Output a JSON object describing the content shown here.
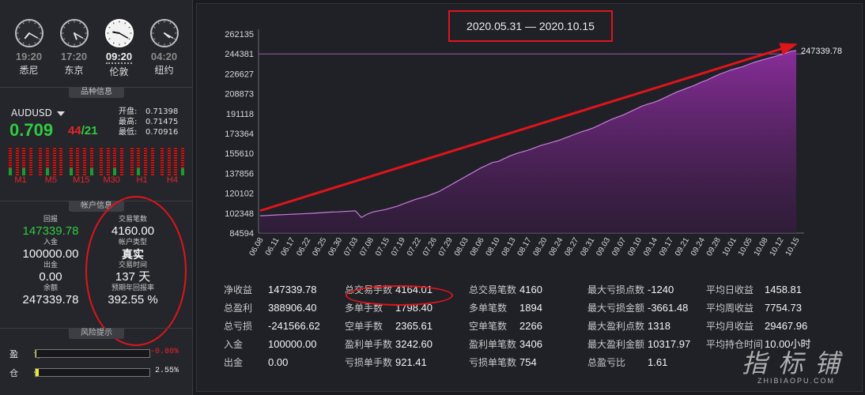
{
  "clocks": [
    {
      "time": "19:20",
      "city": "悉尼",
      "hour": 19,
      "minute": 20,
      "active": false
    },
    {
      "time": "17:20",
      "city": "东京",
      "hour": 17,
      "minute": 20,
      "active": false
    },
    {
      "time": "09:20",
      "city": "伦敦",
      "hour": 9,
      "minute": 20,
      "active": true
    },
    {
      "time": "04:20",
      "city": "纽约",
      "hour": 4,
      "minute": 20,
      "active": false
    }
  ],
  "sections": {
    "instrument": "品种信息",
    "account": "帐户信息",
    "risk": "风险提示"
  },
  "instrument": {
    "symbol": "AUDUSD",
    "price_main": "0.709",
    "price_a": "44",
    "price_sep": "/",
    "price_b": "21",
    "open_label": "开盘:",
    "open": "0.71398",
    "high_label": "最高:",
    "high": "0.71475",
    "low_label": "最低:",
    "low": "0.70916",
    "timeframes": [
      "M1",
      "M5",
      "M15",
      "M30",
      "H1",
      "H4"
    ]
  },
  "account": {
    "return_label": "回报",
    "return": "147339.78",
    "deposit_label": "入金",
    "deposit": "100000.00",
    "withdraw_label": "出金",
    "withdraw": "0.00",
    "balance_label": "余额",
    "balance": "247339.78",
    "lots_label": "交易笔数",
    "lots": "4160.00",
    "type_label": "帐户类型",
    "type": "真实",
    "time_label": "交易时间",
    "time": "137 天",
    "annual_label": "预期年回报率",
    "annual": "392.55 %"
  },
  "risk": {
    "profit_label": "盈 亏",
    "profit_pct": "-0.80%",
    "profit_value": 0.8,
    "position_label": "仓 位",
    "position_pct": "2.55%",
    "position_value": 2.55
  },
  "chart_data": {
    "type": "area",
    "title": "2020.05.31 — 2020.10.15",
    "last_value_label": "247339.78",
    "y_ticks": [
      "262135",
      "244381",
      "226627",
      "208873",
      "191118",
      "173364",
      "155610",
      "137856",
      "120102",
      "102348",
      "84594"
    ],
    "ylim": [
      84594,
      262135
    ],
    "reference_line": 244381,
    "x_ticks": [
      "06.08",
      "06.11",
      "06.17",
      "06.22",
      "06.25",
      "06.30",
      "07.03",
      "07.08",
      "07.15",
      "07.19",
      "07.22",
      "07.26",
      "07.29",
      "08.03",
      "08.06",
      "08.10",
      "08.13",
      "08.17",
      "08.20",
      "08.24",
      "08.27",
      "08.31",
      "09.03",
      "09.07",
      "09.10",
      "09.14",
      "09.17",
      "09.21",
      "09.24",
      "09.28",
      "10.01",
      "10.05",
      "10.08",
      "10.12",
      "10.15"
    ],
    "series": [
      {
        "values": [
          100000,
          100200,
          100500,
          100800,
          101000,
          101300,
          101500,
          101700,
          102000,
          102300,
          102600,
          103000,
          103300,
          103500,
          103800,
          104100,
          104400,
          98500,
          101500,
          103500,
          104500,
          105500,
          107000,
          108500,
          110500,
          112500,
          114500,
          116000,
          117500,
          119500,
          121500,
          124500,
          127500,
          130500,
          133500,
          136500,
          139500,
          142500,
          145000,
          147500,
          148500,
          151000,
          153500,
          155500,
          157000,
          158500,
          160500,
          162500,
          164000,
          165500,
          167000,
          169000,
          171000,
          173000,
          175000,
          176500,
          178500,
          181000,
          183500,
          186000,
          188000,
          190000,
          192500,
          195000,
          197500,
          199500,
          201000,
          203000,
          205500,
          208000,
          210500,
          212500,
          214500,
          216500,
          219000,
          221000,
          223500,
          226000,
          228000,
          230000,
          231500,
          233000,
          235000,
          237000,
          238500,
          240000,
          241500,
          243000,
          244500,
          246500,
          247339.78
        ]
      }
    ]
  },
  "stats": [
    [
      {
        "k": "净收益",
        "v": "147339.78"
      },
      {
        "k": "总盈利",
        "v": "388906.40"
      },
      {
        "k": "总亏损",
        "v": "-241566.62"
      },
      {
        "k": "入金",
        "v": "100000.00"
      },
      {
        "k": "出金",
        "v": "0.00"
      }
    ],
    [
      {
        "k": "总交易手数",
        "v": "4164.01"
      },
      {
        "k": "多单手数",
        "v": "1798.40"
      },
      {
        "k": "空单手数",
        "v": "2365.61"
      },
      {
        "k": "盈利单手数",
        "v": "3242.60"
      },
      {
        "k": "亏损单手数",
        "v": "921.41"
      }
    ],
    [
      {
        "k": "总交易笔数",
        "v": "4160"
      },
      {
        "k": "多单笔数",
        "v": "1894"
      },
      {
        "k": "空单笔数",
        "v": "2266"
      },
      {
        "k": "盈利单笔数",
        "v": "3406"
      },
      {
        "k": "亏损单笔数",
        "v": "754"
      }
    ],
    [
      {
        "k": "最大亏损点数",
        "v": "-1240"
      },
      {
        "k": "最大亏损金额",
        "v": "-3661.48"
      },
      {
        "k": "最大盈利点数",
        "v": "1318"
      },
      {
        "k": "最大盈利金额",
        "v": "10317.97"
      },
      {
        "k": "总盈亏比",
        "v": "1.61"
      }
    ],
    [
      {
        "k": "平均日收益",
        "v": "1458.81"
      },
      {
        "k": "平均周收益",
        "v": "7754.73"
      },
      {
        "k": "平均月收益",
        "v": "29467.96"
      },
      {
        "k": "平均持仓时间",
        "v": "10.00小时"
      }
    ]
  ],
  "watermark": {
    "cn": "指标铺",
    "en": "ZHIBIAOPU.COM"
  },
  "colors": {
    "accent_red": "#e0141b",
    "profit_green": "#2ecc40",
    "area_purple": "#7a2a8c"
  }
}
